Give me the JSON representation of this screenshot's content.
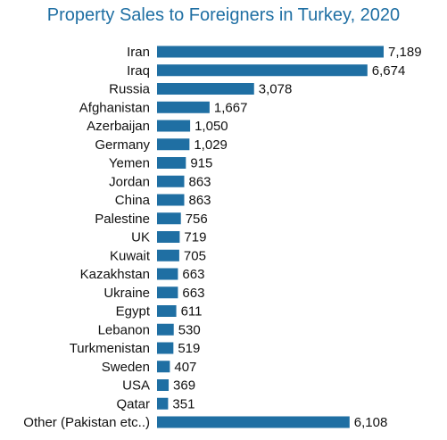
{
  "chart_data": {
    "type": "bar",
    "orientation": "horizontal",
    "title": "Property Sales to Foreigners in Turkey, 2020",
    "categories": [
      "Iran",
      "Iraq",
      "Russia",
      "Afghanistan",
      "Azerbaijan",
      "Germany",
      "Yemen",
      "Jordan",
      "China",
      "Palestine",
      "UK",
      "Kuwait",
      "Kazakhstan",
      "Ukraine",
      "Egypt",
      "Lebanon",
      "Turkmenistan",
      "Sweden",
      "USA",
      "Qatar",
      "Other (Pakistan etc..)"
    ],
    "values": [
      7189,
      6674,
      3078,
      1667,
      1050,
      1029,
      915,
      863,
      863,
      756,
      719,
      705,
      663,
      663,
      611,
      530,
      519,
      407,
      369,
      351,
      6108
    ],
    "value_labels": [
      "7,189",
      "6,674",
      "3,078",
      "1,667",
      "1,050",
      "1,029",
      "915",
      "863",
      "863",
      "756",
      "719",
      "705",
      "663",
      "663",
      "611",
      "530",
      "519",
      "407",
      "369",
      "351",
      "6,108"
    ],
    "bar_color": "#1f6fa3",
    "xlim": [
      0,
      7189
    ],
    "grid": false,
    "legend": "none"
  }
}
